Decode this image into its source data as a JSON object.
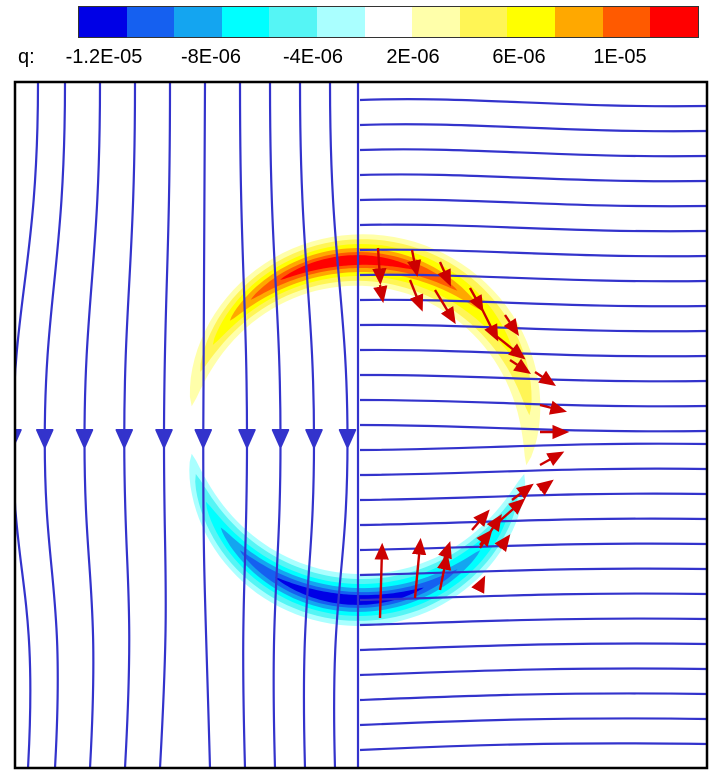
{
  "chart_data": {
    "type": "contour",
    "colorbar": {
      "title": "q:",
      "tick_labels": [
        "-1.2E-05",
        "-8E-06",
        "-4E-06",
        "2E-06",
        "6E-06",
        "1E-05"
      ],
      "colors": [
        "#0000e6",
        "#1560f0",
        "#14a5f0",
        "#00ffff",
        "#55f5f5",
        "#aaffff",
        "#ffffff",
        "#ffffaa",
        "#fff555",
        "#ffff00",
        "#ffa800",
        "#ff5a00",
        "#ff0000"
      ]
    },
    "fields": {
      "positive_band": {
        "center": [
          360,
          430
        ],
        "radius": 160,
        "arc_degrees": [
          -170,
          18
        ],
        "peak_angle": -92
      },
      "negative_band": {
        "center": [
          360,
          430
        ],
        "radius": 160,
        "arc_degrees": [
          20,
          170
        ],
        "peak_angle": 95
      }
    },
    "streamline_color": "#3333cc",
    "vector_color": "#cc0000"
  }
}
